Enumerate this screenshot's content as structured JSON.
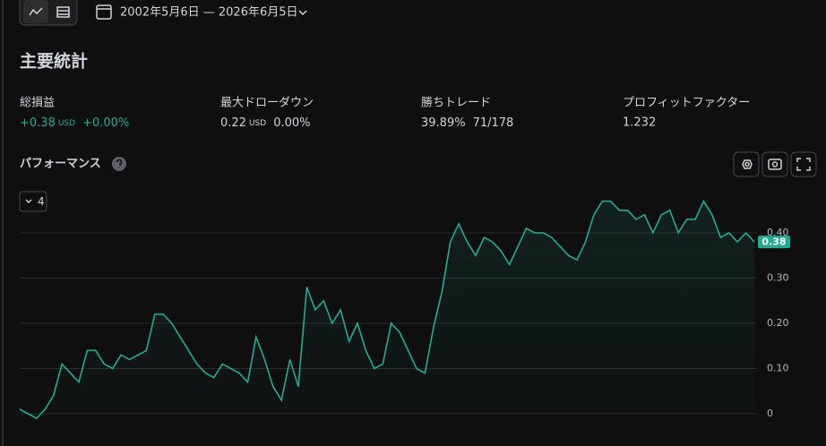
{
  "toolbar": {
    "date_range": "2002年5月6日 — 2026年6月5日"
  },
  "section_title": "主要統計",
  "stats": [
    {
      "label": "総損益",
      "value": "+0.38",
      "unit": "USD",
      "percent": "+0.00%"
    },
    {
      "label": "最大ドローダウン",
      "value": "0.22",
      "unit": "USD",
      "percent": "0.00%"
    },
    {
      "label": "勝ちトレード",
      "value": "39.89%",
      "detail": "71/178"
    },
    {
      "label": "プロフィットファクター",
      "value": "1.232"
    }
  ],
  "performance_title": "パフォーマンス",
  "series_selector": "4",
  "chart_data": {
    "type": "line",
    "series": [
      {
        "color": "#22ab94",
        "values": [
          0.01,
          0.0,
          -0.01,
          0.01,
          0.04,
          0.11,
          0.09,
          0.07,
          0.14,
          0.14,
          0.11,
          0.1,
          0.13,
          0.12,
          0.13,
          0.14,
          0.22,
          0.22,
          0.2,
          0.17,
          0.14,
          0.11,
          0.09,
          0.08,
          0.11,
          0.1,
          0.09,
          0.07,
          0.17,
          0.12,
          0.06,
          0.03,
          0.12,
          0.06,
          0.28,
          0.23,
          0.25,
          0.2,
          0.23,
          0.16,
          0.2,
          0.14,
          0.1,
          0.11,
          0.2,
          0.18,
          0.14,
          0.1,
          0.09,
          0.19,
          0.27,
          0.38,
          0.42,
          0.38,
          0.35,
          0.39,
          0.38,
          0.36,
          0.33,
          0.37,
          0.41,
          0.4,
          0.4,
          0.39,
          0.37,
          0.35,
          0.34,
          0.38,
          0.44,
          0.47,
          0.47,
          0.45,
          0.45,
          0.43,
          0.44,
          0.4,
          0.44,
          0.45,
          0.4,
          0.43,
          0.43,
          0.47,
          0.44,
          0.39,
          0.4,
          0.38,
          0.4,
          0.38
        ]
      }
    ],
    "ylim": [
      -0.02,
      0.49
    ],
    "yticks": [
      0,
      {
        "value": 0.1,
        "label": "0.10"
      },
      {
        "value": 0.2,
        "label": "0.20"
      },
      {
        "value": 0.3,
        "label": "0.30"
      },
      {
        "value": 0.4,
        "label": "0.40"
      }
    ],
    "grid": true
  }
}
